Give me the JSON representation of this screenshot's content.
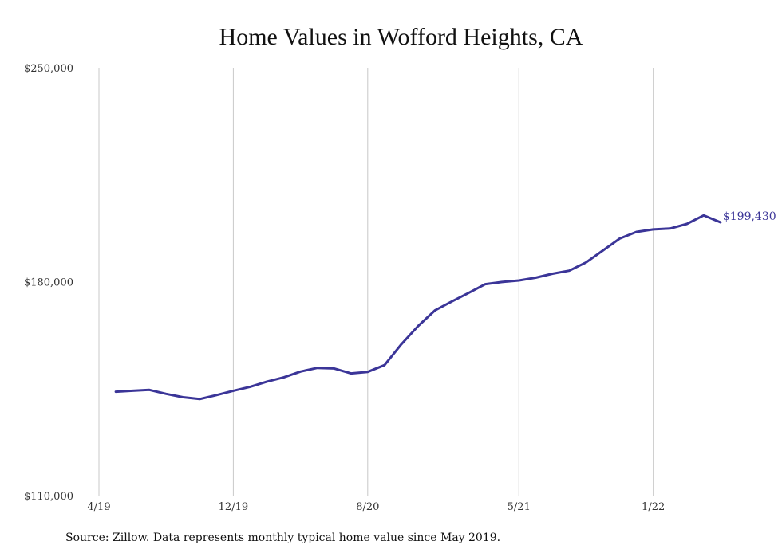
{
  "chart_data": {
    "type": "line",
    "title": "Home Values in Wofford Heights, CA",
    "xlabel": "",
    "ylabel": "",
    "ylim": [
      110000,
      250000
    ],
    "y_ticks": [
      "$250,000",
      "$180,000",
      "$110,000"
    ],
    "x_ticks": [
      "4/19",
      "12/19",
      "8/20",
      "5/21",
      "1/22"
    ],
    "grid": "vertical",
    "line_color": "#3b3598",
    "series": [
      {
        "x": [
          "2019-05",
          "2019-06",
          "2019-07",
          "2019-08",
          "2019-09",
          "2019-10",
          "2019-11",
          "2019-12",
          "2020-01",
          "2020-02",
          "2020-03",
          "2020-04",
          "2020-05",
          "2020-06",
          "2020-07",
          "2020-08",
          "2020-09",
          "2020-10",
          "2020-11",
          "2020-12",
          "2021-01",
          "2021-02",
          "2021-03",
          "2021-04",
          "2021-05",
          "2021-06",
          "2021-07",
          "2021-08",
          "2021-09",
          "2021-10",
          "2021-11",
          "2021-12",
          "2022-01",
          "2022-02",
          "2022-03",
          "2022-04",
          "2022-05"
        ],
        "values": [
          144000,
          144300,
          144600,
          143300,
          142200,
          141600,
          142900,
          144300,
          145600,
          147300,
          148700,
          150600,
          151800,
          151600,
          150000,
          150500,
          152700,
          159500,
          165500,
          170600,
          173500,
          176300,
          179200,
          179900,
          180400,
          181300,
          182600,
          183600,
          186300,
          190200,
          194100,
          196300,
          197100,
          197400,
          198900,
          201700,
          199430
        ]
      }
    ],
    "end_label": "$199,430"
  },
  "source_note": "Source: Zillow. Data represents monthly typical home value since May 2019."
}
